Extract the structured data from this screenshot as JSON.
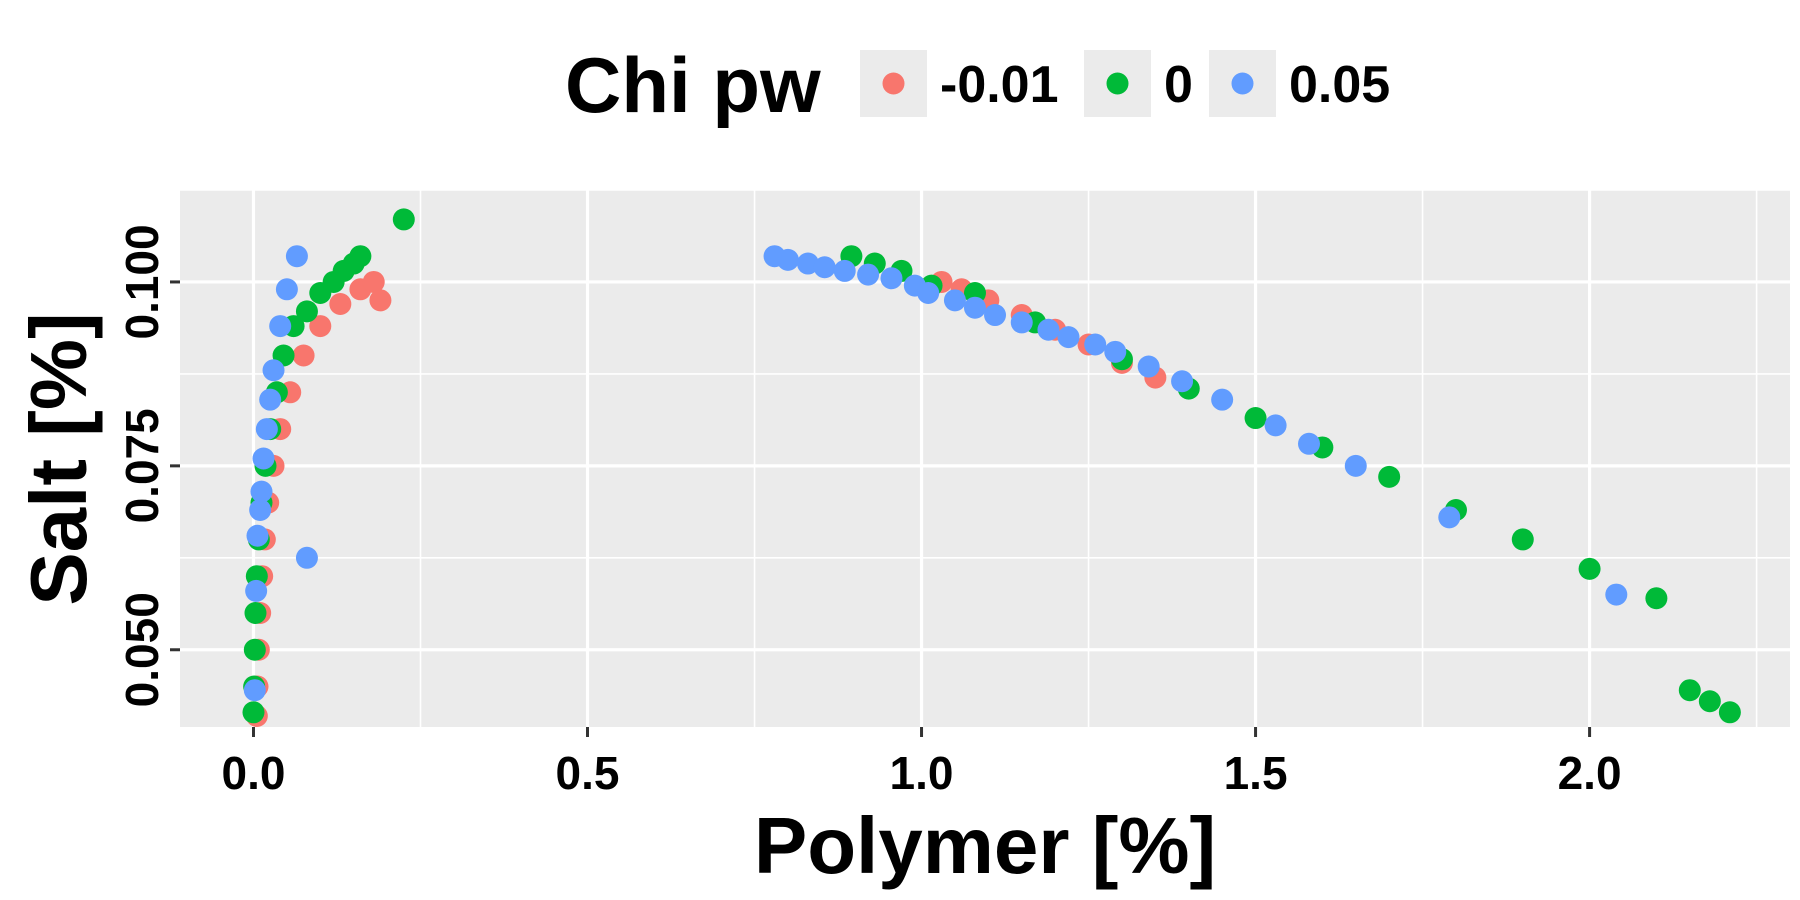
{
  "chart_data": {
    "type": "scatter",
    "xlabel": "Polymer [%]",
    "ylabel": "Salt [%]",
    "xlim": [
      -0.11,
      2.3
    ],
    "ylim": [
      0.0395,
      0.1125
    ],
    "xticks": [
      0.0,
      0.5,
      1.0,
      1.5,
      2.0
    ],
    "xtick_labels": [
      "0.0",
      "0.5",
      "1.0",
      "1.5",
      "2.0"
    ],
    "yticks": [
      0.05,
      0.075,
      0.1
    ],
    "ytick_labels": [
      "0.050",
      "0.075",
      "0.100"
    ],
    "grid": true,
    "legend": {
      "title": "Chi pw",
      "position": "top",
      "entries": [
        "-0.01",
        "0",
        "0.05"
      ]
    },
    "series": [
      {
        "name": "-0.01",
        "color": "#F8766D",
        "points": [
          [
            0.005,
            0.041
          ],
          [
            0.006,
            0.045
          ],
          [
            0.008,
            0.05
          ],
          [
            0.01,
            0.055
          ],
          [
            0.013,
            0.06
          ],
          [
            0.017,
            0.065
          ],
          [
            0.022,
            0.07
          ],
          [
            0.03,
            0.075
          ],
          [
            0.04,
            0.08
          ],
          [
            0.055,
            0.085
          ],
          [
            0.075,
            0.09
          ],
          [
            0.1,
            0.094
          ],
          [
            0.13,
            0.097
          ],
          [
            0.16,
            0.099
          ],
          [
            0.18,
            0.1
          ],
          [
            0.19,
            0.0975
          ],
          [
            1.03,
            0.1
          ],
          [
            1.06,
            0.099
          ],
          [
            1.1,
            0.0975
          ],
          [
            1.15,
            0.0955
          ],
          [
            1.2,
            0.0935
          ],
          [
            1.25,
            0.0915
          ],
          [
            1.3,
            0.089
          ],
          [
            1.35,
            0.087
          ]
        ]
      },
      {
        "name": "0",
        "color": "#00BA38",
        "points": [
          [
            0.0,
            0.0415
          ],
          [
            0.001,
            0.045
          ],
          [
            0.002,
            0.05
          ],
          [
            0.003,
            0.055
          ],
          [
            0.005,
            0.06
          ],
          [
            0.008,
            0.065
          ],
          [
            0.012,
            0.07
          ],
          [
            0.018,
            0.075
          ],
          [
            0.025,
            0.08
          ],
          [
            0.035,
            0.085
          ],
          [
            0.045,
            0.09
          ],
          [
            0.06,
            0.094
          ],
          [
            0.08,
            0.096
          ],
          [
            0.1,
            0.0985
          ],
          [
            0.12,
            0.1
          ],
          [
            0.135,
            0.1015
          ],
          [
            0.15,
            0.1025
          ],
          [
            0.16,
            0.1035
          ],
          [
            0.225,
            0.1085
          ],
          [
            0.895,
            0.1035
          ],
          [
            0.93,
            0.1025
          ],
          [
            0.97,
            0.1015
          ],
          [
            1.015,
            0.0995
          ],
          [
            1.08,
            0.0985
          ],
          [
            1.17,
            0.0945
          ],
          [
            1.3,
            0.0895
          ],
          [
            1.4,
            0.0855
          ],
          [
            1.5,
            0.0815
          ],
          [
            1.6,
            0.0775
          ],
          [
            1.7,
            0.0735
          ],
          [
            1.8,
            0.069
          ],
          [
            1.9,
            0.065
          ],
          [
            2.0,
            0.061
          ],
          [
            2.1,
            0.057
          ],
          [
            2.15,
            0.0445
          ],
          [
            2.18,
            0.043
          ],
          [
            2.21,
            0.0415
          ]
        ]
      },
      {
        "name": "0.05",
        "color": "#619CFF",
        "points": [
          [
            0.002,
            0.0445
          ],
          [
            0.004,
            0.058
          ],
          [
            0.006,
            0.0655
          ],
          [
            0.01,
            0.069
          ],
          [
            0.012,
            0.0715
          ],
          [
            0.015,
            0.076
          ],
          [
            0.02,
            0.08
          ],
          [
            0.025,
            0.084
          ],
          [
            0.03,
            0.088
          ],
          [
            0.04,
            0.094
          ],
          [
            0.05,
            0.099
          ],
          [
            0.065,
            0.1035
          ],
          [
            0.08,
            0.0625
          ],
          [
            0.78,
            0.1035
          ],
          [
            0.8,
            0.103
          ],
          [
            0.83,
            0.1025
          ],
          [
            0.855,
            0.102
          ],
          [
            0.885,
            0.1015
          ],
          [
            0.92,
            0.101
          ],
          [
            0.955,
            0.1005
          ],
          [
            0.99,
            0.0995
          ],
          [
            1.01,
            0.0985
          ],
          [
            1.05,
            0.0975
          ],
          [
            1.08,
            0.0965
          ],
          [
            1.11,
            0.0955
          ],
          [
            1.15,
            0.0945
          ],
          [
            1.19,
            0.0935
          ],
          [
            1.22,
            0.0925
          ],
          [
            1.26,
            0.0915
          ],
          [
            1.29,
            0.0905
          ],
          [
            1.34,
            0.0885
          ],
          [
            1.39,
            0.0865
          ],
          [
            1.45,
            0.084
          ],
          [
            1.53,
            0.0805
          ],
          [
            1.58,
            0.078
          ],
          [
            1.65,
            0.075
          ],
          [
            1.79,
            0.068
          ],
          [
            2.04,
            0.0575
          ]
        ]
      }
    ]
  }
}
